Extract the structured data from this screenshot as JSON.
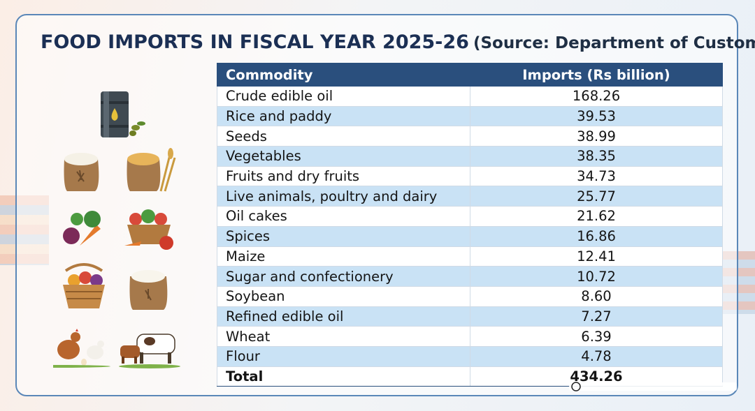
{
  "title": {
    "main": "FOOD IMPORTS IN FISCAL YEAR 2025-26",
    "source": "(Source: Department of Customs)"
  },
  "colors": {
    "header_bg": "#2a4f7d",
    "stripe": "#c9e2f5",
    "title_text": "#1b2f54",
    "border": "#5a87b8"
  },
  "icons": [
    "oil-barrel-icon",
    "rice-sack-icon",
    "grain-sack-icon",
    "vegetables-icon",
    "vegetable-basket-icon",
    "fruit-basket-icon",
    "flour-sack-icon",
    "chickens-icon",
    "cows-icon"
  ],
  "chart_data": {
    "type": "table",
    "columns": [
      "Commodity",
      "Imports (Rs billion)"
    ],
    "rows": [
      [
        "Crude edible oil",
        "168.26"
      ],
      [
        "Rice and paddy",
        "39.53"
      ],
      [
        "Seeds",
        "38.99"
      ],
      [
        "Vegetables",
        "38.35"
      ],
      [
        "Fruits and dry fruits",
        "34.73"
      ],
      [
        "Live animals, poultry and dairy",
        "25.77"
      ],
      [
        "Oil cakes",
        "21.62"
      ],
      [
        "Spices",
        "16.86"
      ],
      [
        "Maize",
        "12.41"
      ],
      [
        "Sugar and confectionery",
        "10.72"
      ],
      [
        "Soybean",
        "8.60"
      ],
      [
        "Refined edible oil",
        "7.27"
      ],
      [
        "Wheat",
        "6.39"
      ],
      [
        "Flour",
        "4.78"
      ]
    ],
    "total": [
      "Total",
      "434.26"
    ]
  }
}
